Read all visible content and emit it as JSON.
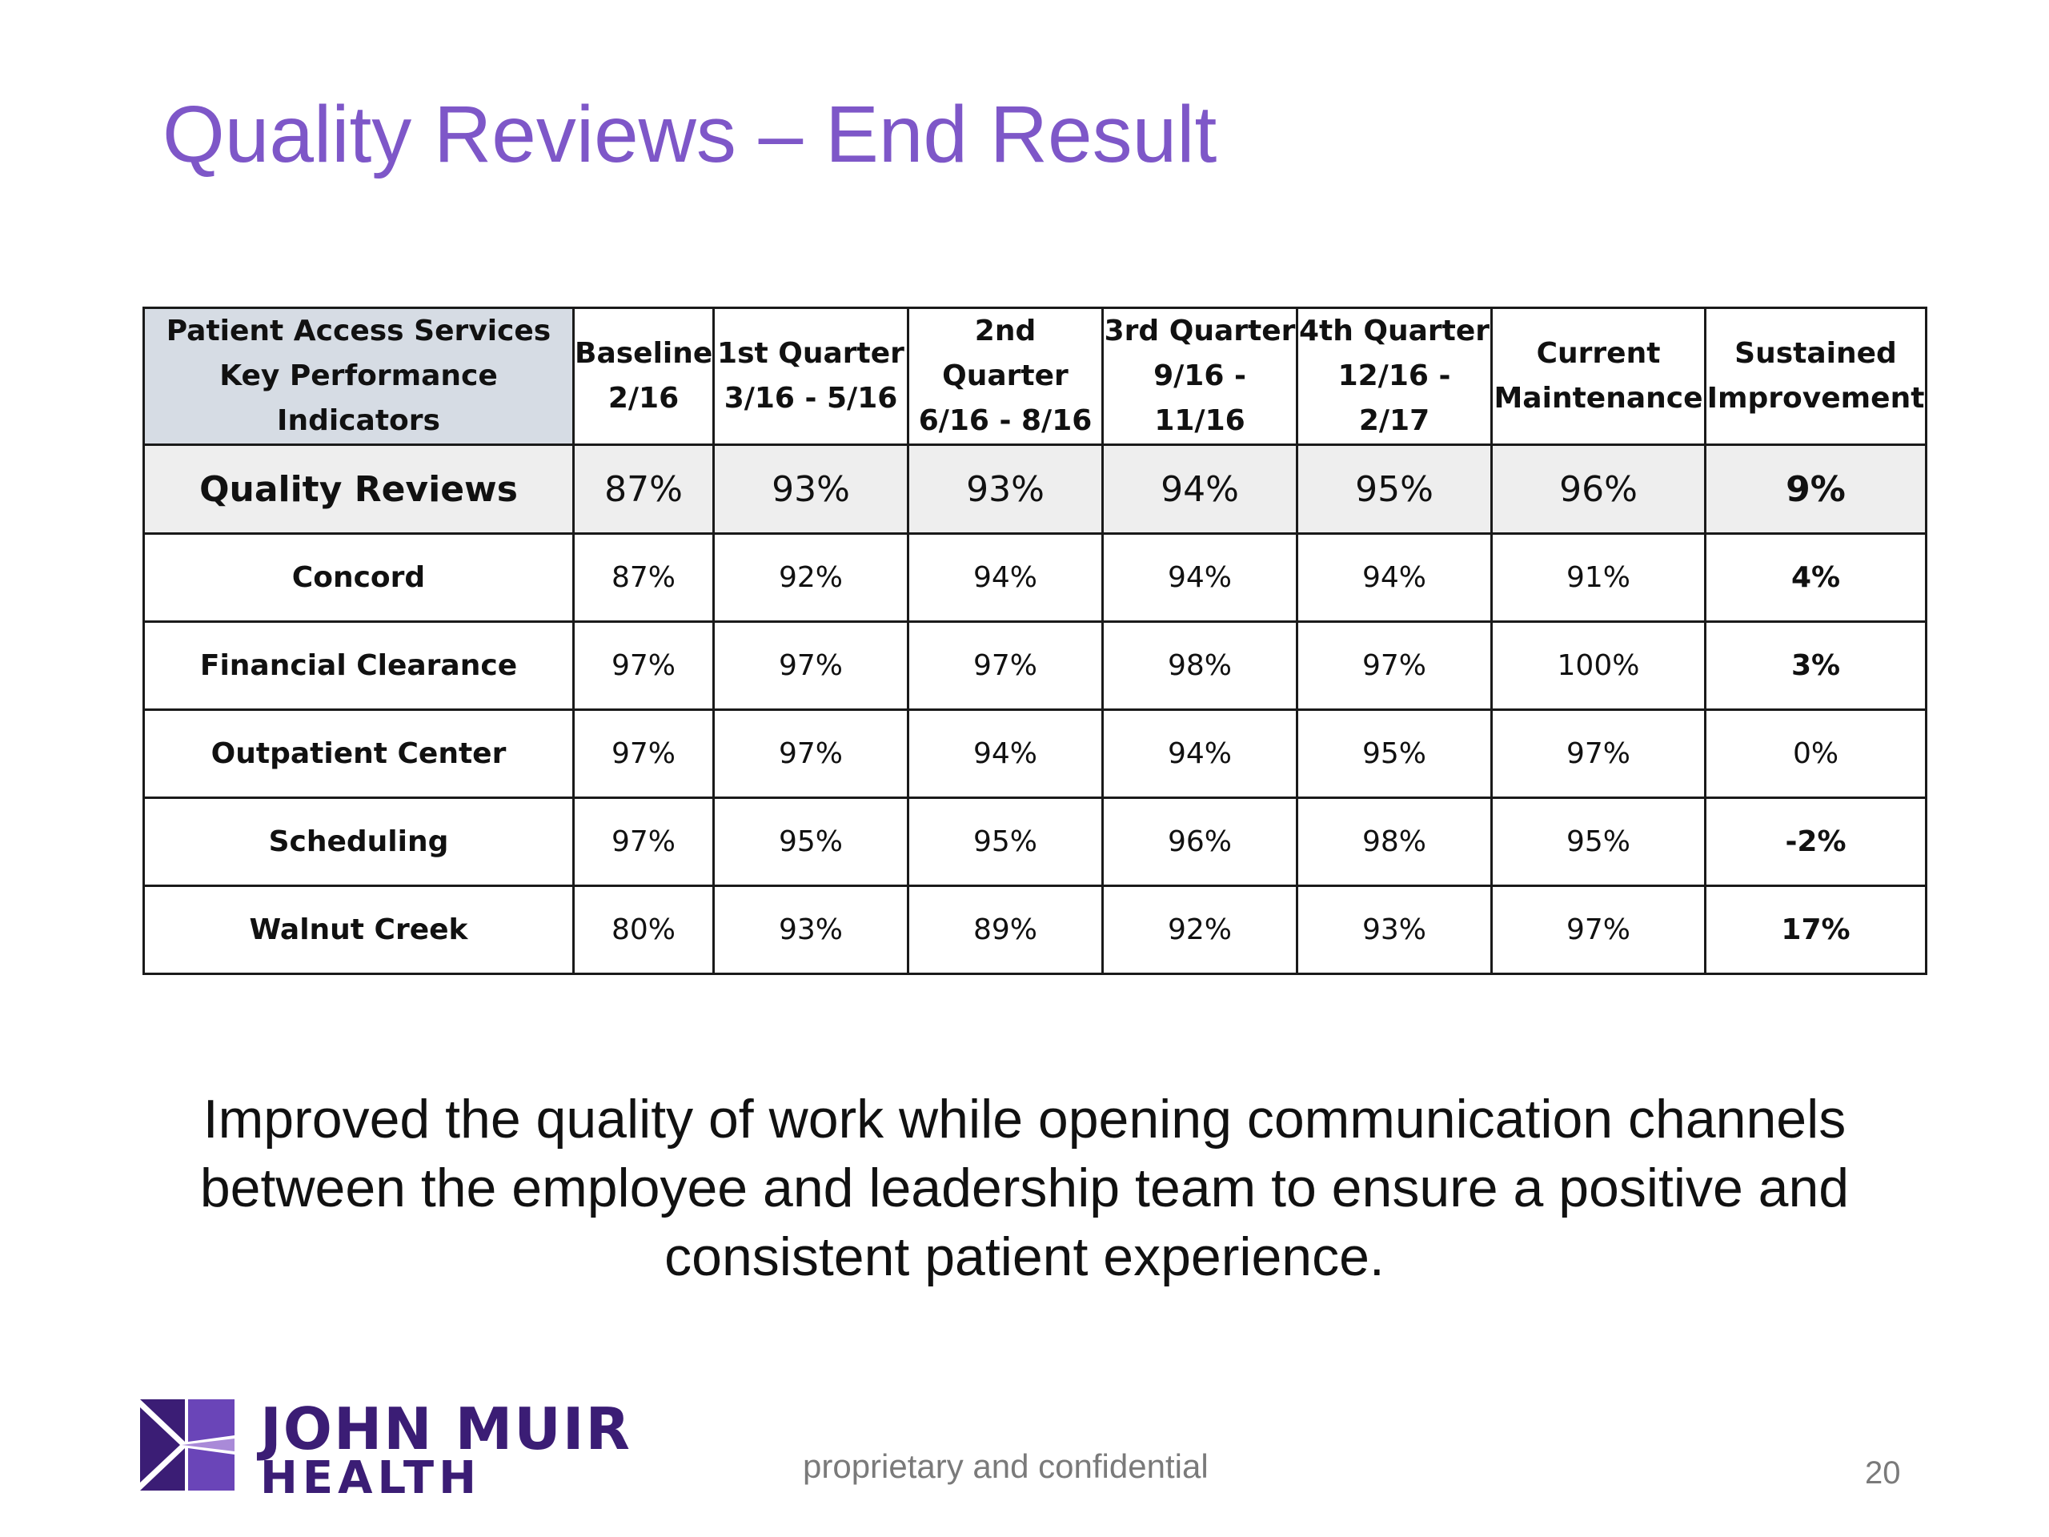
{
  "title": "Quality Reviews – End Result",
  "table": {
    "headers": [
      {
        "line1": "Patient Access Services",
        "line2": "Key Performance Indicators"
      },
      {
        "line1": "Baseline",
        "line2": "2/16"
      },
      {
        "line1": "1st Quarter",
        "line2": "3/16 - 5/16"
      },
      {
        "line1": "2nd Quarter",
        "line2": "6/16 - 8/16"
      },
      {
        "line1": "3rd Quarter",
        "line2": "9/16 - 11/16"
      },
      {
        "line1": "4th Quarter",
        "line2": "12/16 - 2/17"
      },
      {
        "line1": "Current",
        "line2": "Maintenance"
      },
      {
        "line1": "Sustained",
        "line2": "Improvement"
      }
    ],
    "rows": [
      {
        "label": "Quality Reviews",
        "values": [
          "87%",
          "93%",
          "93%",
          "94%",
          "95%",
          "96%"
        ],
        "improvement": "9%",
        "improvement_status": "positive"
      },
      {
        "label": "Concord",
        "values": [
          "87%",
          "92%",
          "94%",
          "94%",
          "94%",
          "91%"
        ],
        "improvement": "4%",
        "improvement_status": "positive"
      },
      {
        "label": "Financial Clearance",
        "values": [
          "97%",
          "97%",
          "97%",
          "98%",
          "97%",
          "100%"
        ],
        "improvement": "3%",
        "improvement_status": "positive"
      },
      {
        "label": "Outpatient Center",
        "values": [
          "97%",
          "97%",
          "94%",
          "94%",
          "95%",
          "97%"
        ],
        "improvement": "0%",
        "improvement_status": "neutral"
      },
      {
        "label": "Scheduling",
        "values": [
          "97%",
          "95%",
          "95%",
          "96%",
          "98%",
          "95%"
        ],
        "improvement": "-2%",
        "improvement_status": "negative"
      },
      {
        "label": "Walnut Creek",
        "values": [
          "80%",
          "93%",
          "89%",
          "92%",
          "93%",
          "97%"
        ],
        "improvement": "17%",
        "improvement_status": "positive"
      }
    ]
  },
  "statement": "Improved the quality of work while opening communication channels between the employee and leadership team to ensure a positive and consistent patient experience.",
  "logo": {
    "line1": "JOHN MUIR",
    "line2": "HEALTH",
    "icon": "butterfly-logo-icon"
  },
  "footer": "proprietary and confidential",
  "page_number": "20",
  "colors": {
    "title": "#7e57c8",
    "header_fill": "#d6dce4",
    "summary_fill": "#eeeeee",
    "positive": "#17a84a",
    "negative": "#e0312d",
    "logo": "#3b1d75"
  }
}
